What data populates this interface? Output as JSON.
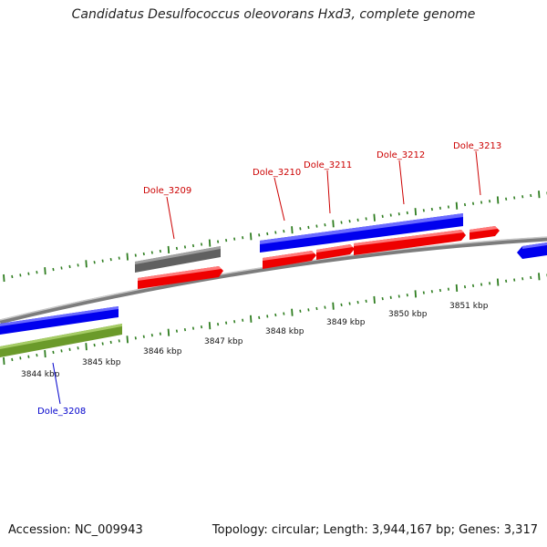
{
  "title": "Candidatus Desulfococcus oleovorans Hxd3, complete genome",
  "footer": {
    "accession": "Accession: NC_009943",
    "topology": "Topology: circular; Length: 3,944,167 bp; Genes: 3,317"
  },
  "colors": {
    "backbone": "#8a8a8a",
    "tick_green": "#2e7d1f",
    "forward_gene": "#0000ee",
    "reverse_gene": "#ee0000",
    "other_gene": "#666666",
    "highlight_gene": "#6b9a2a",
    "label_red": "#cc0000",
    "label_blue": "#0000cc"
  },
  "axis_labels": [
    {
      "label": "3844 kbp"
    },
    {
      "label": "3845 kbp"
    },
    {
      "label": "3846 kbp"
    },
    {
      "label": "3847 kbp"
    },
    {
      "label": "3848 kbp"
    },
    {
      "label": "3849 kbp"
    },
    {
      "label": "3850 kbp"
    },
    {
      "label": "3851 kbp"
    }
  ],
  "gene_labels": [
    {
      "name": "Dole_3208"
    },
    {
      "name": "Dole_3209"
    },
    {
      "name": "Dole_3210"
    },
    {
      "name": "Dole_3211"
    },
    {
      "name": "Dole_3212"
    },
    {
      "name": "Dole_3213"
    }
  ]
}
